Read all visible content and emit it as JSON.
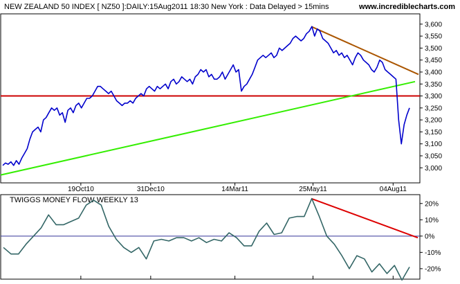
{
  "header": {
    "title": "NEW ZEALAND 50 INDEX [ NZ50 ]:DAILY:15Aug2011 18:30 New York : Data Delayed > 15mins",
    "site": "www.incrediblecharts.com"
  },
  "chart_data": [
    {
      "type": "line",
      "title": "NEW ZEALAND 50 INDEX [ NZ50 ]:DAILY:15Aug2011 18:30 New York : Data Delayed > 15mins",
      "xlabel": "",
      "ylabel": "",
      "x_tick_labels": [
        "19Oct10",
        "31Dec10",
        "14Mar11",
        "25May11",
        "04Aug11"
      ],
      "y_tick_labels": [
        "3,000",
        "3,050",
        "3,100",
        "3,150",
        "3,200",
        "3,250",
        "3,300",
        "3,350",
        "3,400",
        "3,450",
        "3,500",
        "3,550",
        "3,600"
      ],
      "ylim": [
        2940,
        3640
      ],
      "grid": false,
      "series": [
        {
          "values": [
            3010,
            3020,
            3015,
            3025,
            3010,
            3030,
            3015,
            3040,
            3060,
            3080,
            3120,
            3150,
            3160,
            3170,
            3150,
            3200,
            3210,
            3230,
            3250,
            3240,
            3250,
            3220,
            3230,
            3190,
            3240,
            3250,
            3230,
            3260,
            3270,
            3250,
            3270,
            3290,
            3290,
            3300,
            3320,
            3340,
            3340,
            3330,
            3320,
            3310,
            3320,
            3300,
            3280,
            3270,
            3260,
            3270,
            3270,
            3280,
            3270,
            3290,
            3300,
            3310,
            3300,
            3330,
            3340,
            3330,
            3320,
            3340,
            3330,
            3340,
            3350,
            3330,
            3360,
            3370,
            3350,
            3360,
            3380,
            3370,
            3360,
            3370,
            3350,
            3380,
            3390,
            3410,
            3400,
            3410,
            3380,
            3390,
            3370,
            3370,
            3380,
            3400,
            3370,
            3390,
            3410,
            3430,
            3400,
            3410,
            3320,
            3340,
            3350,
            3370,
            3390,
            3420,
            3450,
            3460,
            3470,
            3460,
            3470,
            3480,
            3460,
            3470,
            3500,
            3490,
            3500,
            3510,
            3520,
            3540,
            3550,
            3540,
            3530,
            3540,
            3560,
            3570,
            3590,
            3550,
            3580,
            3570,
            3540,
            3530,
            3520,
            3500,
            3480,
            3490,
            3470,
            3480,
            3460,
            3470,
            3450,
            3430,
            3460,
            3480,
            3470,
            3450,
            3440,
            3430,
            3410,
            3400,
            3420,
            3450,
            3440,
            3410,
            3400,
            3390,
            3380,
            3370,
            3200,
            3100,
            3180,
            3220,
            3250
          ]
        },
        {
          "values": [
            2970,
            3360
          ]
        }
      ],
      "horizontal_line": 3300,
      "resistance_line": [
        3590,
        3390
      ]
    },
    {
      "type": "line",
      "title": "TWIGGS MONEY FLOW WEEKLY 13",
      "xlabel": "",
      "ylabel": "",
      "y_tick_labels": [
        "20%",
        "10%",
        "0%",
        "-10%",
        "-20%"
      ],
      "ylim": [
        -26,
        25
      ],
      "grid": false,
      "series": [
        {
          "values": [
            -7,
            -11,
            -11,
            -5,
            0,
            5,
            13,
            7,
            7,
            9,
            11,
            19,
            22,
            19,
            6,
            -2,
            -7,
            -10,
            -7,
            -14,
            -3,
            -2,
            -3,
            -1,
            -1,
            -3,
            -1,
            -4,
            -2,
            -3,
            2,
            -1,
            -6,
            -6,
            3,
            8,
            1,
            2,
            11,
            12,
            12,
            23,
            12,
            0,
            -5,
            -12,
            -20,
            -12,
            -14,
            -22,
            -17,
            -23,
            -18,
            -27,
            -19
          ]
        }
      ],
      "zero_line": 0,
      "trend_line": [
        23,
        -1
      ]
    }
  ],
  "colors": {
    "price_line": "#0000cc",
    "support_line": "#33ee00",
    "horizontal_line": "#cc0000",
    "resistance_line": "#aa5500",
    "money_flow_line": "#336666",
    "money_flow_trend": "#dd0000",
    "zero_line": "#333399"
  }
}
